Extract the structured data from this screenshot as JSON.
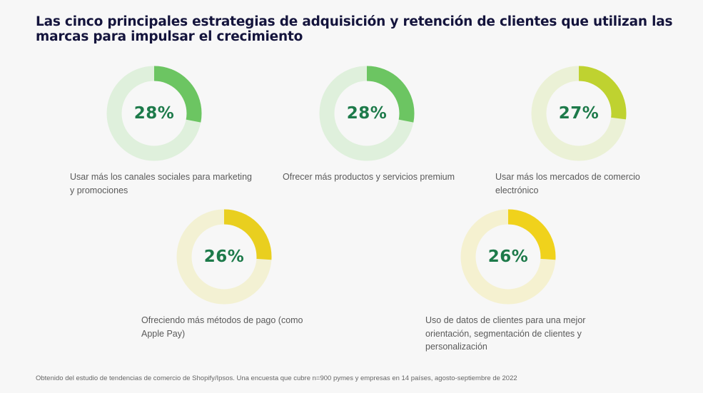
{
  "title": "Las cinco principales estrategias de adquisición y retención de clientes que utilizan las marcas para impulsar el crecimiento",
  "chart_data": {
    "type": "donut",
    "items": [
      {
        "value": 28,
        "label": "28%",
        "caption": "Usar más los canales sociales para marketing y promociones",
        "color": "#6cc562",
        "track": "#dff0dc"
      },
      {
        "value": 28,
        "label": "28%",
        "caption": "Ofrecer más productos y servicios premium",
        "color": "#6cc562",
        "track": "#dff0dc"
      },
      {
        "value": 27,
        "label": "27%",
        "caption": "Usar más los mercados de comercio electrónico",
        "color": "#bfd230",
        "track": "#ebf1d6"
      },
      {
        "value": 26,
        "label": "26%",
        "caption": "Ofreciendo más métodos de pago (como Apple Pay)",
        "color": "#e9cf1f",
        "track": "#f3f1d3"
      },
      {
        "value": 26,
        "label": "26%",
        "caption": "Uso de datos de clientes para una mejor orientación, segmentación de clientes y personalización",
        "color": "#f0d21c",
        "track": "#f5f1d0"
      }
    ]
  },
  "footnote": "Obtenido del estudio de tendencias de comercio de Shopify/Ipsos. Una encuesta que cubre n=900 pymes y empresas en 14 países, agosto-septiembre de 2022"
}
